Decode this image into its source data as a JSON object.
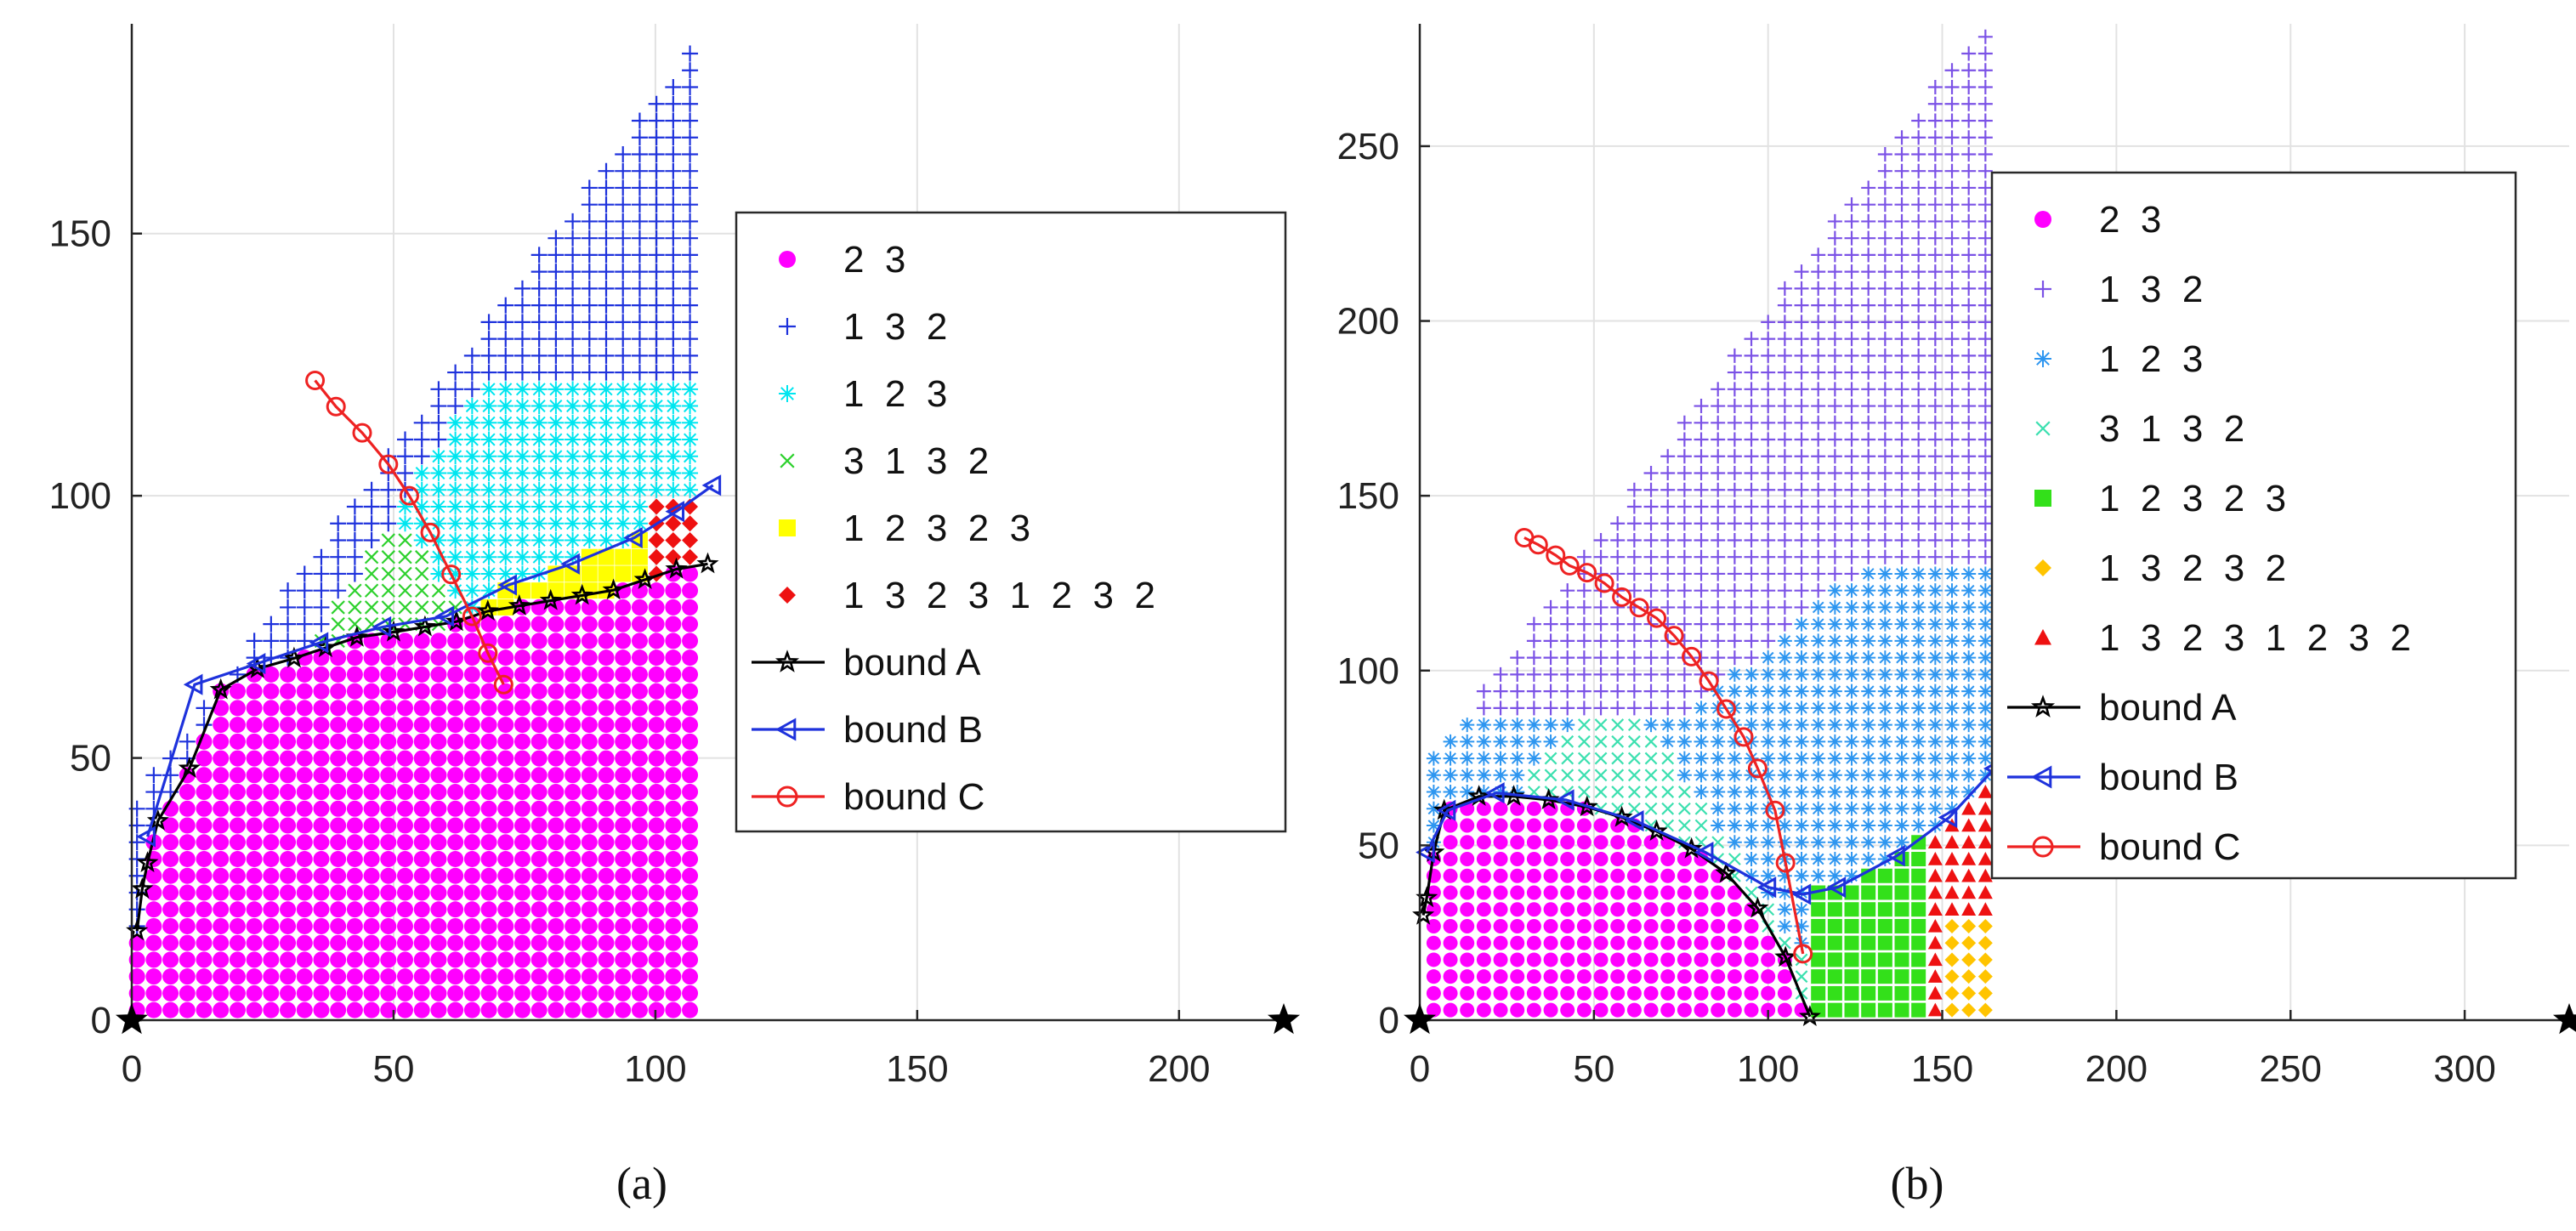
{
  "panels": [
    {
      "caption": "(a)",
      "chart_data": {
        "type": "scatter",
        "xlim": [
          0,
          220
        ],
        "ylim": [
          0,
          190
        ],
        "xticks": [
          "0",
          "50",
          "100",
          "150",
          "200"
        ],
        "yticks": [
          "0",
          "50",
          "100",
          "150"
        ],
        "grid": true,
        "legend_placement": "center-right",
        "x_markers": [
          0,
          220
        ],
        "region_series": [
          {
            "name": "2  3",
            "color": "#ff00ff",
            "marker": "dot"
          },
          {
            "name": "1  3  2",
            "color": "#1e32dc",
            "marker": "plus"
          },
          {
            "name": "1  2  3",
            "color": "#00e6f0",
            "marker": "asterisk"
          },
          {
            "name": "3  1  3  2",
            "color": "#2ed12e",
            "marker": "cross"
          },
          {
            "name": "1  2  3  2  3",
            "color": "#ffff00",
            "marker": "square"
          },
          {
            "name": "1  3  2  3  1  2  3  2",
            "color": "#ee1111",
            "marker": "diamond"
          }
        ],
        "grid_samples": {
          "x_range": [
            1,
            109
          ],
          "step": 3.2
        },
        "bound_lines": [
          {
            "name": "bound A",
            "color": "#000000",
            "marker": "star",
            "x": [
              1,
              2,
              3,
              5,
              11,
              17,
              24,
              31,
              37,
              43,
              50,
              56,
              62,
              68,
              74,
              80,
              86,
              92,
              98,
              104,
              110
            ],
            "y": [
              17,
              25,
              30,
              38,
              48,
              63,
              67,
              69,
              71,
              73,
              74,
              75,
              76,
              78,
              79,
              80,
              81,
              82,
              84,
              86,
              87
            ]
          },
          {
            "name": "bound B",
            "color": "#1e32dc",
            "marker": "triangle-left",
            "x": [
              3,
              12,
              24,
              36,
              48,
              60,
              72,
              84,
              96,
              104,
              111
            ],
            "y": [
              35,
              64,
              68,
              72,
              75,
              77,
              83,
              87,
              92,
              97,
              102
            ]
          },
          {
            "name": "bound C",
            "color": "#ee2222",
            "marker": "circle",
            "x": [
              35,
              39,
              44,
              49,
              53,
              57,
              61,
              65,
              68,
              71
            ],
            "y": [
              122,
              117,
              112,
              106,
              100,
              93,
              85,
              77,
              70,
              64
            ]
          }
        ]
      }
    },
    {
      "caption": "(b)",
      "chart_data": {
        "type": "scatter",
        "xlim": [
          0,
          330
        ],
        "ylim": [
          0,
          285
        ],
        "xticks": [
          "0",
          "50",
          "100",
          "150",
          "200",
          "250",
          "300"
        ],
        "yticks": [
          "0",
          "50",
          "100",
          "150",
          "200",
          "250"
        ],
        "grid": true,
        "legend_placement": "center-right",
        "x_markers": [
          0,
          330
        ],
        "region_series": [
          {
            "name": "2  3",
            "color": "#ff00ff",
            "marker": "dot"
          },
          {
            "name": "1  3  2",
            "color": "#7b52e6",
            "marker": "plus"
          },
          {
            "name": "1  2  3",
            "color": "#2e96f0",
            "marker": "asterisk"
          },
          {
            "name": "3  1  3  2",
            "color": "#3de0b0",
            "marker": "cross"
          },
          {
            "name": "1  2  3  2  3",
            "color": "#33e01a",
            "marker": "square"
          },
          {
            "name": "1  3  2  3  2",
            "color": "#ffc400",
            "marker": "diamond"
          },
          {
            "name": "1  3  2  3  1  2  3  2",
            "color": "#ee1111",
            "marker": "triangle"
          }
        ],
        "grid_samples": {
          "x_range": [
            4,
            164
          ],
          "step": 4.8
        },
        "bound_lines": [
          {
            "name": "bound A",
            "color": "#000000",
            "marker": "star",
            "x": [
              1,
              2,
              4,
              7,
              17,
              27,
              37,
              48,
              58,
              68,
              78,
              88,
              97,
              105,
              112
            ],
            "y": [
              30,
              35,
              48,
              60,
              64,
              64,
              63,
              61,
              58,
              54,
              49,
              42,
              32,
              18,
              1
            ]
          },
          {
            "name": "bound B",
            "color": "#1e32dc",
            "marker": "triangle-left",
            "x": [
              2,
              8,
              22,
              42,
              62,
              82,
              100,
              110,
              120,
              137,
              152,
              165
            ],
            "y": [
              48,
              60,
              65,
              63,
              57,
              48,
              38,
              36,
              38,
              47,
              58,
              72
            ]
          },
          {
            "name": "bound C",
            "color": "#ee2222",
            "marker": "circle",
            "x": [
              30,
              34,
              39,
              43,
              48,
              53,
              58,
              63,
              68,
              73,
              78,
              83,
              88,
              93,
              97,
              102,
              105,
              110
            ],
            "y": [
              138,
              136,
              133,
              130,
              128,
              125,
              121,
              118,
              115,
              110,
              104,
              97,
              89,
              81,
              72,
              60,
              45,
              19
            ]
          }
        ]
      }
    }
  ]
}
